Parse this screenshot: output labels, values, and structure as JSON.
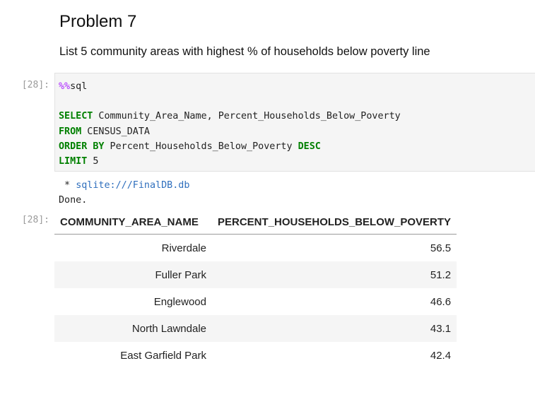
{
  "markdown": {
    "title": "Problem 7",
    "subtitle": "List 5 community areas with highest % of households below poverty line"
  },
  "code_cell": {
    "prompt": "[28]:",
    "magic": "%%",
    "magic_name": "sql",
    "lines": [
      {
        "kw": "SELECT",
        "rest": " Community_Area_Name, Percent_Households_Below_Poverty"
      },
      {
        "kw": "FROM",
        "rest": " CENSUS_DATA"
      },
      {
        "kw": "ORDER BY",
        "rest": " Percent_Households_Below_Poverty ",
        "kw2": "DESC"
      },
      {
        "kw": "LIMIT",
        "rest": " 5"
      }
    ]
  },
  "output": {
    "prompt": "[28]:",
    "connection_prefix": " * ",
    "connection": "sqlite:///FinalDB.db",
    "status": "Done.",
    "columns": [
      "COMMUNITY_AREA_NAME",
      "PERCENT_HOUSEHOLDS_BELOW_POVERTY"
    ],
    "rows": [
      [
        "Riverdale",
        "56.5"
      ],
      [
        "Fuller Park",
        "51.2"
      ],
      [
        "Englewood",
        "46.6"
      ],
      [
        "North Lawndale",
        "43.1"
      ],
      [
        "East Garfield Park",
        "42.4"
      ]
    ]
  }
}
